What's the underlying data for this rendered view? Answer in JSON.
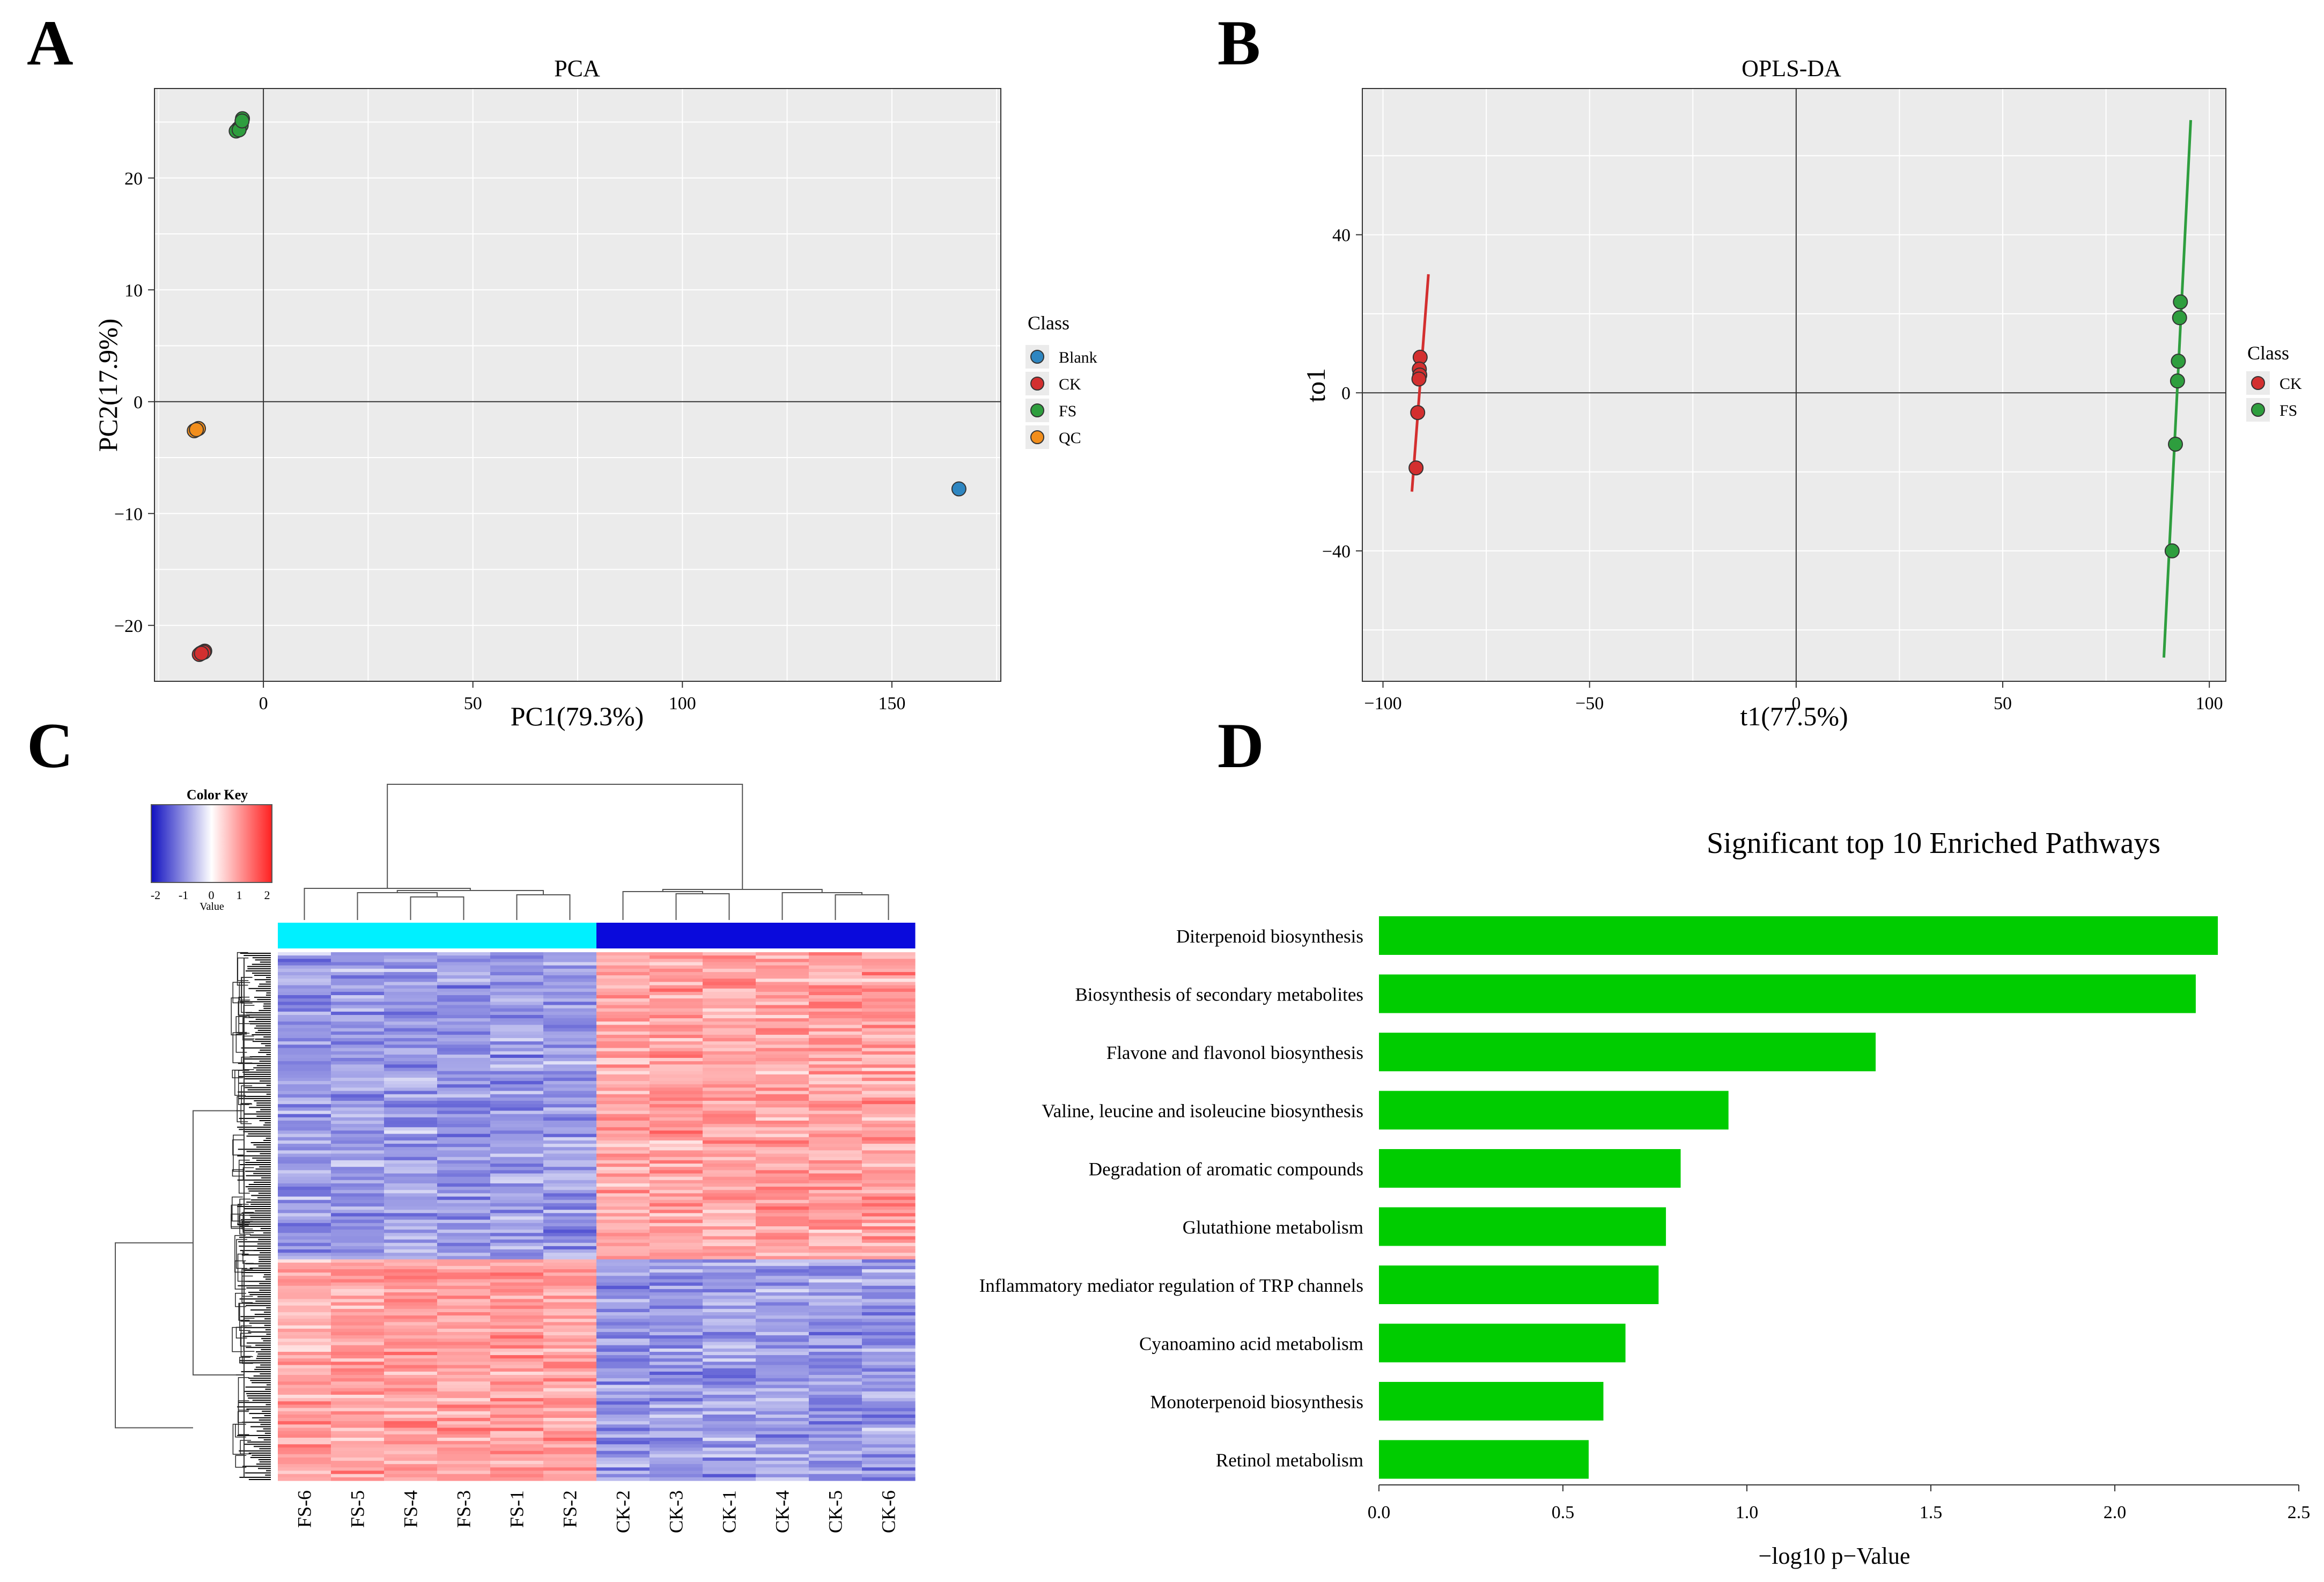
{
  "panel_letters": {
    "a": "A",
    "b": "B",
    "c": "C",
    "d": "D"
  },
  "colors": {
    "panel_bg": "#ebebeb",
    "Blank": "#2e86c1",
    "CK": "#d32f2f",
    "FS": "#2e9e3e",
    "QC": "#f28e1c",
    "bar": "#00cc00",
    "heat_low": "#1010c0",
    "heat_mid": "#ffffff",
    "heat_high": "#ff2020",
    "group_fs": "#00f0ff",
    "group_ck": "#0a0adc"
  },
  "chart_data": [
    {
      "id": "pca",
      "type": "scatter",
      "title": "PCA",
      "xlabel": "PC1(79.3%)",
      "ylabel": "PC2(17.9%)",
      "xlim": [
        -26,
        176
      ],
      "ylim": [
        -25,
        28
      ],
      "xticks": [
        0,
        50,
        100,
        150
      ],
      "yticks": [
        -20,
        -10,
        0,
        10,
        20
      ],
      "xtick_labels": [
        "0",
        "50",
        "100",
        "150"
      ],
      "ytick_labels": [
        "−20",
        "−10",
        "0",
        "10",
        "20"
      ],
      "legend_title": "Class",
      "legend": [
        "Blank",
        "CK",
        "FS",
        "QC"
      ],
      "series": [
        {
          "name": "Blank",
          "points": [
            [
              166,
              -7.8
            ]
          ]
        },
        {
          "name": "CK",
          "points": [
            [
              -15,
              -22.5
            ],
            [
              -14.5,
              -22.4
            ],
            [
              -14,
              -22.3
            ],
            [
              -15.3,
              -22.6
            ],
            [
              -14.2,
              -22.4
            ],
            [
              -14.8,
              -22.5
            ]
          ]
        },
        {
          "name": "FS",
          "points": [
            [
              -5,
              25.3
            ],
            [
              -6,
              24.4
            ],
            [
              -6.5,
              24.2
            ],
            [
              -5.3,
              24.7
            ],
            [
              -5.8,
              24.3
            ],
            [
              -5.1,
              25.1
            ]
          ]
        },
        {
          "name": "QC",
          "points": [
            [
              -16.5,
              -2.6
            ],
            [
              -15.5,
              -2.4
            ],
            [
              -16,
              -2.5
            ]
          ]
        }
      ]
    },
    {
      "id": "oplsda",
      "type": "scatter",
      "title": "OPLS-DA",
      "xlabel": "t1(77.5%)",
      "ylabel": "to1",
      "xlim": [
        -105,
        104
      ],
      "ylim": [
        -73,
        77
      ],
      "xticks": [
        -100,
        -50,
        0,
        50,
        100
      ],
      "yticks": [
        -40,
        0,
        40
      ],
      "xtick_labels": [
        "−100",
        "−50",
        "0",
        "50",
        "100"
      ],
      "ytick_labels": [
        "−40",
        "0",
        "40"
      ],
      "legend_title": "Class",
      "legend": [
        "CK",
        "FS"
      ],
      "series": [
        {
          "name": "CK",
          "points": [
            [
              -91,
              9
            ],
            [
              -91.2,
              6
            ],
            [
              -91.1,
              4.5
            ],
            [
              -91.3,
              3.5
            ],
            [
              -91.6,
              -5
            ],
            [
              -92,
              -19
            ]
          ],
          "ellipse": [
            [
              -93,
              -25
            ],
            [
              -89,
              30
            ]
          ]
        },
        {
          "name": "FS",
          "points": [
            [
              93,
              23
            ],
            [
              92.8,
              19
            ],
            [
              92.5,
              8
            ],
            [
              92.3,
              3
            ],
            [
              91.8,
              -13
            ],
            [
              91,
              -40
            ]
          ],
          "ellipse": [
            [
              89,
              -67
            ],
            [
              95.5,
              69
            ]
          ]
        }
      ]
    },
    {
      "id": "heatmap",
      "type": "heatmap",
      "color_key_title": "Color Key",
      "color_key_xlabel": "Value",
      "color_key_ticks": [
        "-2",
        "-1",
        "0",
        "1",
        "2"
      ],
      "columns": [
        "FS-6",
        "FS-5",
        "FS-4",
        "FS-3",
        "FS-1",
        "FS-2",
        "CK-2",
        "CK-3",
        "CK-1",
        "CK-4",
        "CK-5",
        "CK-6"
      ],
      "column_groups": [
        "FS",
        "FS",
        "FS",
        "FS",
        "FS",
        "FS",
        "CK",
        "CK",
        "CK",
        "CK",
        "CK",
        "CK"
      ],
      "cluster_blocks": [
        {
          "fraction": 0.58,
          "FS_level": -1,
          "CK_level": 1
        },
        {
          "fraction": 0.42,
          "FS_level": 1,
          "CK_level": -1
        }
      ],
      "value_range": [
        -2,
        2
      ]
    },
    {
      "id": "pathways",
      "type": "bar",
      "orientation": "horizontal",
      "title": "Significant top 10 Enriched Pathways",
      "xlabel": "−log10 p−Value",
      "xlim": [
        0,
        2.5
      ],
      "xticks": [
        0,
        0.5,
        1,
        1.5,
        2,
        2.5
      ],
      "xtick_labels": [
        "0.0",
        "0.5",
        "1.0",
        "1.5",
        "2.0",
        "2.5"
      ],
      "categories": [
        "Diterpenoid biosynthesis",
        "Biosynthesis of secondary metabolites",
        "Flavone and flavonol biosynthesis",
        "Valine, leucine and isoleucine biosynthesis",
        "Degradation of aromatic compounds",
        "Glutathione metabolism",
        "Inflammatory mediator regulation of TRP channels",
        "Cyanoamino acid metabolism",
        "Monoterpenoid biosynthesis",
        "Retinol metabolism"
      ],
      "values": [
        2.28,
        2.22,
        1.35,
        0.95,
        0.82,
        0.78,
        0.76,
        0.67,
        0.61,
        0.57
      ]
    }
  ]
}
